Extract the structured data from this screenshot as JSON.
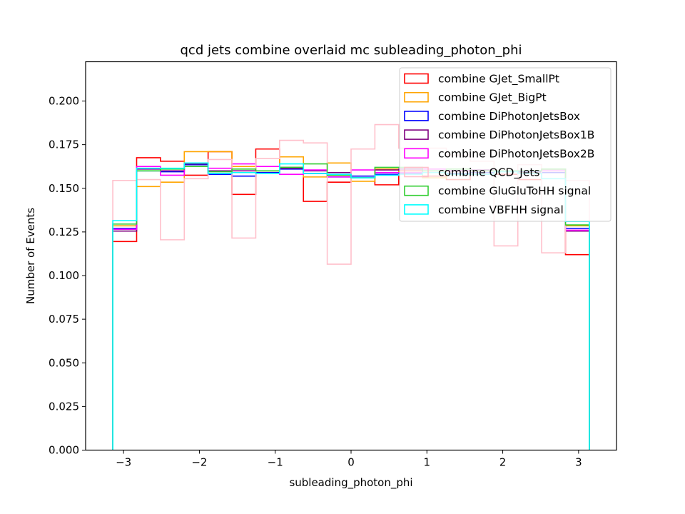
{
  "chart_data": {
    "type": "step-histogram",
    "title": "qcd jets combine overlaid mc subleading_photon_phi",
    "xlabel": "subleading_photon_phi",
    "ylabel": "Number of Events",
    "xlim": [
      -3.5,
      3.5
    ],
    "ylim": [
      0,
      0.2225
    ],
    "xticks": [
      -3,
      -2,
      -1,
      0,
      1,
      2,
      3
    ],
    "xtick_labels": [
      "−3",
      "−2",
      "−1",
      "0",
      "1",
      "2",
      "3"
    ],
    "yticks": [
      0,
      0.025,
      0.05,
      0.075,
      0.1,
      0.125,
      0.15,
      0.175,
      0.2
    ],
    "ytick_labels": [
      "0.000",
      "0.025",
      "0.050",
      "0.075",
      "0.100",
      "0.125",
      "0.150",
      "0.175",
      "0.200"
    ],
    "grid": false,
    "legend_position": "top-right",
    "bin_edges": [
      -3.1416,
      -2.8274,
      -2.5133,
      -2.1991,
      -1.885,
      -1.5708,
      -1.2566,
      -0.9425,
      -0.6283,
      -0.3142,
      0,
      0.3142,
      0.6283,
      0.9425,
      1.2566,
      1.5708,
      1.885,
      2.1991,
      2.5133,
      2.8274,
      3.1416
    ],
    "series": [
      {
        "name": "combine GJet_SmallPt",
        "color": "#ff0000",
        "values": [
          0.1195,
          0.1675,
          0.1655,
          0.1575,
          0.171,
          0.1465,
          0.1725,
          0.162,
          0.1425,
          0.1535,
          0.156,
          0.152,
          0.16,
          0.157,
          0.155,
          0.16,
          0.158,
          0.155,
          0.161,
          0.112
        ]
      },
      {
        "name": "combine GJet_BigPt",
        "color": "#ffa500",
        "values": [
          0.1285,
          0.151,
          0.1535,
          0.171,
          0.171,
          0.1625,
          0.16,
          0.168,
          0.1565,
          0.1645,
          0.154,
          0.161,
          0.158,
          0.156,
          0.16,
          0.158,
          0.16,
          0.159,
          0.16,
          0.1285
        ]
      },
      {
        "name": "combine DiPhotonJetsBox",
        "color": "#0000ff",
        "values": [
          0.127,
          0.16,
          0.1595,
          0.1635,
          0.158,
          0.157,
          0.159,
          0.161,
          0.1585,
          0.1565,
          0.157,
          0.158,
          0.1585,
          0.159,
          0.1585,
          0.159,
          0.16,
          0.1595,
          0.159,
          0.127
        ]
      },
      {
        "name": "combine DiPhotonJetsBox1B",
        "color": "#800080",
        "values": [
          0.1255,
          0.161,
          0.16,
          0.164,
          0.16,
          0.16,
          0.16,
          0.1615,
          0.16,
          0.159,
          0.156,
          0.1605,
          0.161,
          0.16,
          0.16,
          0.1605,
          0.16,
          0.16,
          0.161,
          0.1255
        ]
      },
      {
        "name": "combine DiPhotonJetsBox2B",
        "color": "#ff00ff",
        "values": [
          0.1265,
          0.1625,
          0.1575,
          0.1625,
          0.1615,
          0.164,
          0.1625,
          0.158,
          0.1605,
          0.1565,
          0.1605,
          0.159,
          0.159,
          0.161,
          0.16,
          0.16,
          0.16,
          0.16,
          0.16,
          0.126
        ]
      },
      {
        "name": "combine QCD_Jets",
        "color": "#ffc0cb",
        "values": [
          0.1545,
          0.155,
          0.1205,
          0.1555,
          0.1665,
          0.1215,
          0.167,
          0.1775,
          0.176,
          0.1065,
          0.1725,
          0.1865,
          0.173,
          0.173,
          0.169,
          0.1655,
          0.117,
          0.1635,
          0.113,
          0.1545
        ]
      },
      {
        "name": "combine GluGluToHH signal",
        "color": "#32cd32",
        "values": [
          0.1295,
          0.16,
          0.161,
          0.1625,
          0.1595,
          0.161,
          0.16,
          0.162,
          0.164,
          0.1575,
          0.156,
          0.162,
          0.162,
          0.16,
          0.161,
          0.16,
          0.16,
          0.16,
          0.161,
          0.129
        ]
      },
      {
        "name": "combine VBFHH signal",
        "color": "#00ffff",
        "values": [
          0.1315,
          0.1615,
          0.1615,
          0.1645,
          0.1585,
          0.159,
          0.1585,
          0.164,
          0.1585,
          0.158,
          0.156,
          0.1575,
          0.158,
          0.159,
          0.158,
          0.158,
          0.1595,
          0.1585,
          0.1555,
          0.131
        ]
      }
    ]
  }
}
